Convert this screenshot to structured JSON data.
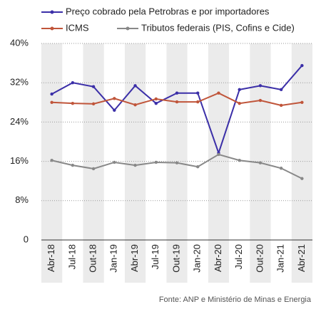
{
  "chart_data": {
    "type": "line",
    "categories": [
      "Abr-18",
      "Jul-18",
      "Out-18",
      "Jan-19",
      "Abr-19",
      "Jul-19",
      "Out-19",
      "Jan-20",
      "Abr-20",
      "Jul-20",
      "Out-20",
      "Jan-21",
      "Abr-21"
    ],
    "series": [
      {
        "name": "Preço cobrado pela Petrobras e por importadores",
        "color": "#3b2fa8",
        "values": [
          29.7,
          32.0,
          31.2,
          26.4,
          31.4,
          27.8,
          29.9,
          29.9,
          17.7,
          30.6,
          31.4,
          30.6,
          35.5
        ]
      },
      {
        "name": "ICMS",
        "color": "#c0553a",
        "values": [
          28.0,
          27.8,
          27.7,
          28.8,
          27.5,
          28.7,
          28.1,
          28.1,
          29.9,
          27.8,
          28.4,
          27.4,
          28.0
        ]
      },
      {
        "name": "Tributos federais (PIS, Cofins e Cide)",
        "color": "#888888",
        "values": [
          16.2,
          15.2,
          14.5,
          15.8,
          15.2,
          15.8,
          15.7,
          14.9,
          17.4,
          16.2,
          15.7,
          14.6,
          12.5
        ]
      }
    ],
    "ylim": [
      0,
      40
    ],
    "yticks": [
      {
        "value": 0,
        "label": "0"
      },
      {
        "value": 8,
        "label": "8%"
      },
      {
        "value": 16,
        "label": "16%"
      },
      {
        "value": 24,
        "label": "24%"
      },
      {
        "value": 32,
        "label": "32%"
      },
      {
        "value": 40,
        "label": "40%"
      }
    ],
    "grid": true,
    "source": "Fonte: ANP e Ministério de Minas e Energia"
  }
}
